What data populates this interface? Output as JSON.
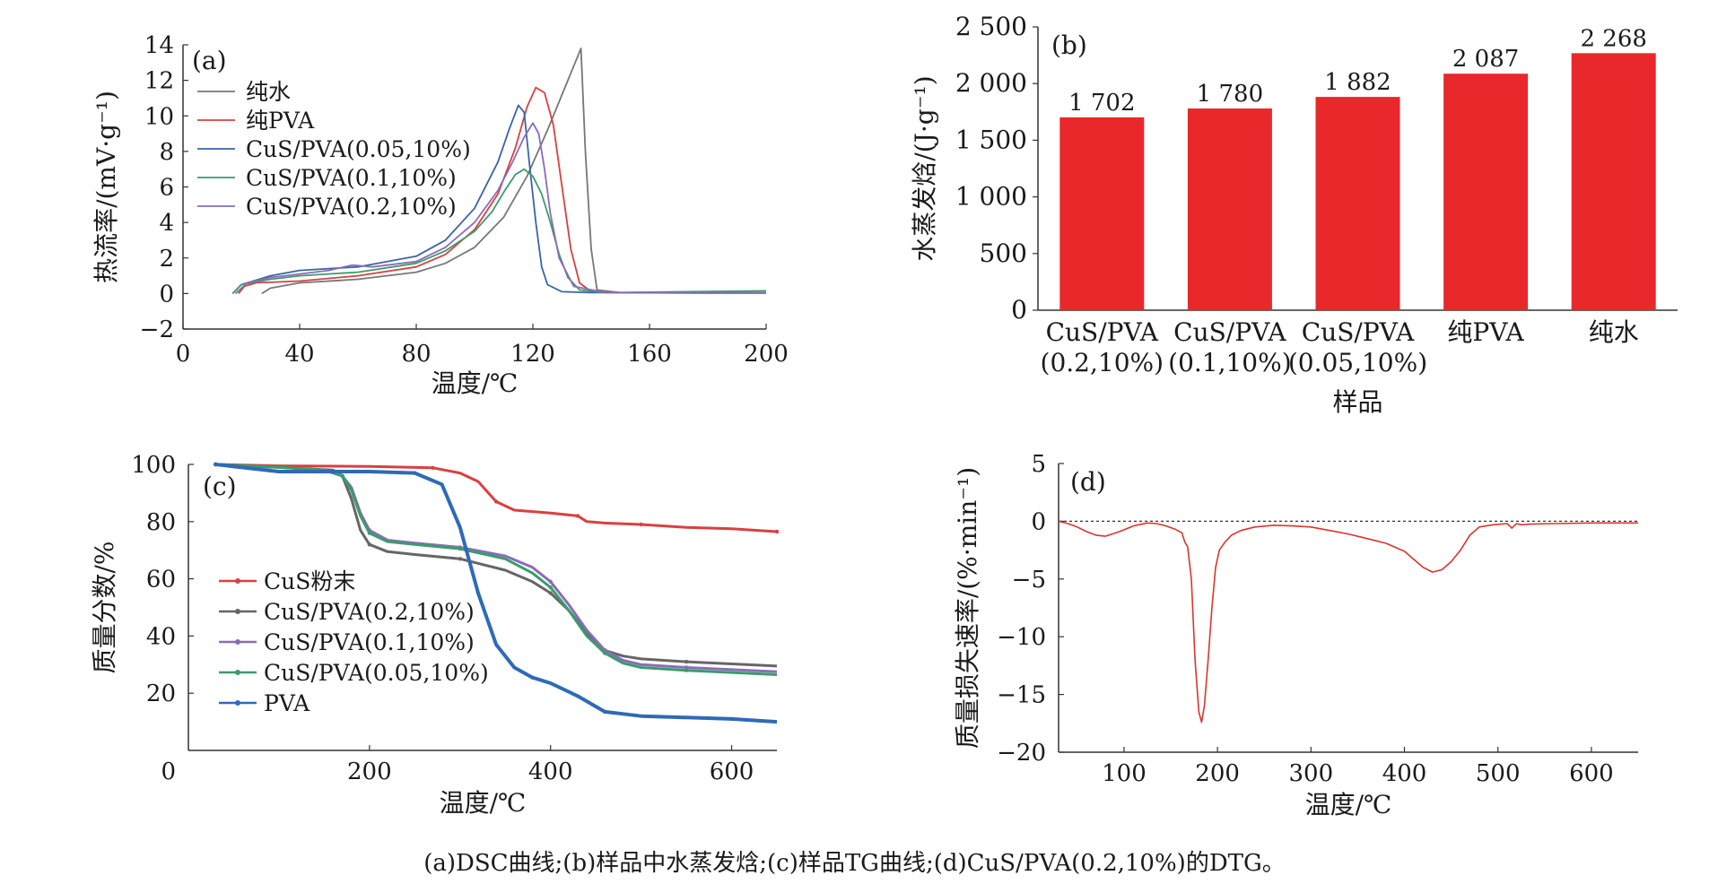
{
  "caption": "(a)DSC曲线;(b)样品中水蒸发焓;(c)样品TG曲线;(d)CuS/PVA(0.2,10%)的DTG。",
  "chart_data": [
    {
      "panel": "(a)",
      "type": "line",
      "xlabel": "温度/℃",
      "ylabel": "热流率/(mV·g⁻¹)",
      "xlim": [
        0,
        200
      ],
      "ylim": [
        -2,
        14
      ],
      "xticks": [
        0,
        40,
        80,
        120,
        160,
        200
      ],
      "yticks": [
        -2,
        0,
        2,
        4,
        6,
        8,
        10,
        12,
        14
      ],
      "legend_position": "top-left",
      "series": [
        {
          "name": "纯水",
          "color": "#777777",
          "x": [
            27,
            30,
            40,
            60,
            80,
            90,
            100,
            110,
            118,
            125,
            130,
            134,
            136.5,
            138,
            140,
            142,
            150,
            180,
            200
          ],
          "y": [
            0,
            0.3,
            0.6,
            0.8,
            1.2,
            1.7,
            2.6,
            4.3,
            6.6,
            9.2,
            11.2,
            12.8,
            13.8,
            8,
            2.5,
            0.2,
            0.05,
            0.02,
            0.02
          ]
        },
        {
          "name": "纯PVA",
          "color": "#d94040",
          "x": [
            19,
            21,
            25,
            40,
            60,
            80,
            90,
            100,
            108,
            114,
            118,
            121,
            124,
            127,
            130,
            133,
            136,
            140,
            150,
            200
          ],
          "y": [
            0,
            0.4,
            0.6,
            0.7,
            1.0,
            1.5,
            2.2,
            3.6,
            5.6,
            8.2,
            10.5,
            11.6,
            11.3,
            9.5,
            6.0,
            2.5,
            0.6,
            0.1,
            0.05,
            0.05
          ]
        },
        {
          "name": "CuS/PVA(0.05,10%)",
          "color": "#3a64a8",
          "x": [
            17,
            20,
            30,
            40,
            50,
            60,
            80,
            90,
            100,
            108,
            112,
            115,
            117,
            119,
            121,
            123,
            125,
            130,
            140,
            200
          ],
          "y": [
            0,
            0.5,
            1.0,
            1.3,
            1.4,
            1.5,
            2.1,
            3.0,
            4.8,
            7.4,
            9.3,
            10.6,
            10.2,
            7.0,
            4.0,
            1.5,
            0.5,
            0.1,
            0.05,
            0.05
          ]
        },
        {
          "name": "CuS/PVA(0.1,10%)",
          "color": "#3a9c6c",
          "x": [
            17,
            20,
            30,
            40,
            60,
            80,
            90,
            100,
            106,
            110,
            114,
            117,
            120,
            123,
            126,
            129,
            132,
            136,
            145,
            200
          ],
          "y": [
            0,
            0.5,
            0.8,
            1.0,
            1.2,
            1.7,
            2.4,
            3.5,
            4.6,
            5.7,
            6.7,
            7.0,
            6.6,
            5.6,
            4.0,
            2.2,
            0.9,
            0.2,
            0.05,
            0.15
          ]
        },
        {
          "name": "CuS/PVA(0.2,10%)",
          "color": "#8a6cb8",
          "x": [
            18,
            22,
            30,
            40,
            50,
            58,
            65,
            80,
            90,
            100,
            108,
            113,
            117,
            120,
            122,
            124,
            126,
            129,
            134,
            145,
            200
          ],
          "y": [
            0,
            0.6,
            0.9,
            1.1,
            1.3,
            1.6,
            1.5,
            1.8,
            2.6,
            4.0,
            5.8,
            7.4,
            8.8,
            9.6,
            9.0,
            7.0,
            4.5,
            2.0,
            0.4,
            0.05,
            0.05
          ]
        }
      ]
    },
    {
      "panel": "(b)",
      "type": "bar",
      "xlabel": "样品",
      "ylabel": "水蒸发焓/(J·g⁻¹)",
      "ylim": [
        0,
        2500
      ],
      "yticks": [
        0,
        500,
        1000,
        1500,
        2000,
        2500
      ],
      "ytick_labels": [
        "0",
        "500",
        "1 000",
        "1 500",
        "2 000",
        "2 500"
      ],
      "categories": [
        [
          "CuS/PVA",
          "(0.2,10%)"
        ],
        [
          "CuS/PVA",
          "(0.1,10%)"
        ],
        [
          "CuS/PVA",
          "(0.05,10%)"
        ],
        [
          "纯PVA"
        ],
        [
          "纯水"
        ]
      ],
      "values": [
        1702,
        1780,
        1882,
        2087,
        2268
      ],
      "value_labels": [
        "1 702",
        "1 780",
        "1 882",
        "2 087",
        "2 268"
      ],
      "color": "#e8282a"
    },
    {
      "panel": "(c)",
      "type": "line",
      "xlabel": "温度/℃",
      "ylabel": "质量分数/%",
      "xlim": [
        0,
        650
      ],
      "ylim": [
        0,
        100
      ],
      "xticks": [
        200,
        400,
        600
      ],
      "yticks": [
        20,
        40,
        60,
        80,
        100
      ],
      "origin_label": "0",
      "legend_position": "center-left",
      "series": [
        {
          "name": "CuS粉末",
          "color": "#d94040",
          "x": [
            30,
            100,
            200,
            270,
            300,
            320,
            340,
            360,
            400,
            430,
            440,
            460,
            500,
            550,
            600,
            650
          ],
          "y": [
            100,
            99.5,
            99.3,
            98.8,
            97.0,
            94.0,
            87.0,
            84.0,
            83.0,
            82.0,
            80.0,
            79.5,
            79.0,
            78.0,
            77.5,
            76.5
          ]
        },
        {
          "name": "CuS/PVA(0.2,10%)",
          "color": "#666666",
          "x": [
            30,
            100,
            160,
            170,
            180,
            190,
            200,
            220,
            250,
            300,
            350,
            380,
            400,
            420,
            440,
            460,
            480,
            500,
            550,
            650
          ],
          "y": [
            100,
            99.0,
            98.0,
            96.0,
            88.0,
            77.0,
            72.0,
            69.5,
            68.5,
            67.0,
            63.0,
            59.0,
            55.0,
            49.0,
            41.0,
            35.0,
            33.0,
            32.0,
            31.0,
            29.5
          ]
        },
        {
          "name": "CuS/PVA(0.1,10%)",
          "color": "#8a6cb8",
          "x": [
            30,
            100,
            150,
            170,
            180,
            190,
            200,
            220,
            250,
            300,
            350,
            380,
            400,
            420,
            440,
            460,
            480,
            500,
            550,
            650
          ],
          "y": [
            100,
            99.0,
            98.0,
            96.0,
            92.0,
            83.0,
            77.0,
            73.5,
            72.5,
            71.0,
            68.0,
            64.0,
            59.0,
            51.0,
            42.0,
            35.0,
            31.5,
            30.0,
            29.0,
            27.5
          ]
        },
        {
          "name": "CuS/PVA(0.05,10%)",
          "color": "#3a9c6c",
          "x": [
            30,
            100,
            150,
            170,
            180,
            190,
            200,
            220,
            250,
            300,
            350,
            380,
            400,
            420,
            440,
            460,
            480,
            500,
            550,
            650
          ],
          "y": [
            100,
            99.0,
            98.0,
            96.0,
            91.0,
            82.0,
            76.0,
            73.0,
            72.0,
            70.5,
            67.0,
            62.0,
            57.0,
            49.0,
            40.0,
            34.0,
            30.5,
            29.0,
            28.0,
            26.5
          ]
        },
        {
          "name": "PVA",
          "color": "#2f6ab6",
          "x": [
            30,
            100,
            200,
            250,
            280,
            300,
            320,
            340,
            360,
            380,
            400,
            430,
            460,
            500,
            550,
            600,
            650
          ],
          "y": [
            100,
            97.5,
            97.5,
            97.0,
            93.0,
            78.0,
            55.0,
            37.0,
            29.0,
            25.5,
            23.5,
            19.0,
            13.5,
            12.0,
            11.5,
            11.0,
            10.0
          ]
        }
      ]
    },
    {
      "panel": "(d)",
      "type": "line",
      "xlabel": "温度/℃",
      "ylabel": "质量损失速率/(%·min⁻¹)",
      "xlim": [
        30,
        650
      ],
      "ylim": [
        -20,
        5
      ],
      "xticks": [
        100,
        200,
        300,
        400,
        500,
        600
      ],
      "yticks": [
        -20,
        -15,
        -10,
        -5,
        0,
        5
      ],
      "reference_line": 0,
      "series": [
        {
          "name": "",
          "color": "#d9352f",
          "x": [
            30,
            40,
            50,
            60,
            70,
            80,
            95,
            110,
            125,
            135,
            145,
            155,
            162,
            165,
            168,
            172,
            176,
            180,
            183,
            186,
            190,
            194,
            198,
            202,
            208,
            215,
            225,
            240,
            260,
            280,
            300,
            320,
            340,
            360,
            380,
            400,
            410,
            420,
            430,
            440,
            450,
            460,
            470,
            480,
            495,
            510,
            515,
            520,
            525,
            535,
            560,
            600,
            650
          ],
          "y": [
            0,
            -0.2,
            -0.5,
            -0.9,
            -1.2,
            -1.3,
            -0.9,
            -0.4,
            -0.15,
            -0.2,
            -0.4,
            -0.7,
            -1.0,
            -1.8,
            -2.2,
            -5.0,
            -12.0,
            -16.5,
            -17.4,
            -16.0,
            -12.0,
            -7.5,
            -4.0,
            -2.5,
            -1.8,
            -1.2,
            -0.8,
            -0.5,
            -0.35,
            -0.4,
            -0.5,
            -0.8,
            -1.1,
            -1.5,
            -1.9,
            -2.6,
            -3.3,
            -4.0,
            -4.4,
            -4.2,
            -3.5,
            -2.5,
            -1.2,
            -0.5,
            -0.3,
            -0.2,
            -0.6,
            -0.2,
            -0.3,
            -0.25,
            -0.2,
            -0.15,
            -0.15
          ]
        }
      ]
    }
  ]
}
